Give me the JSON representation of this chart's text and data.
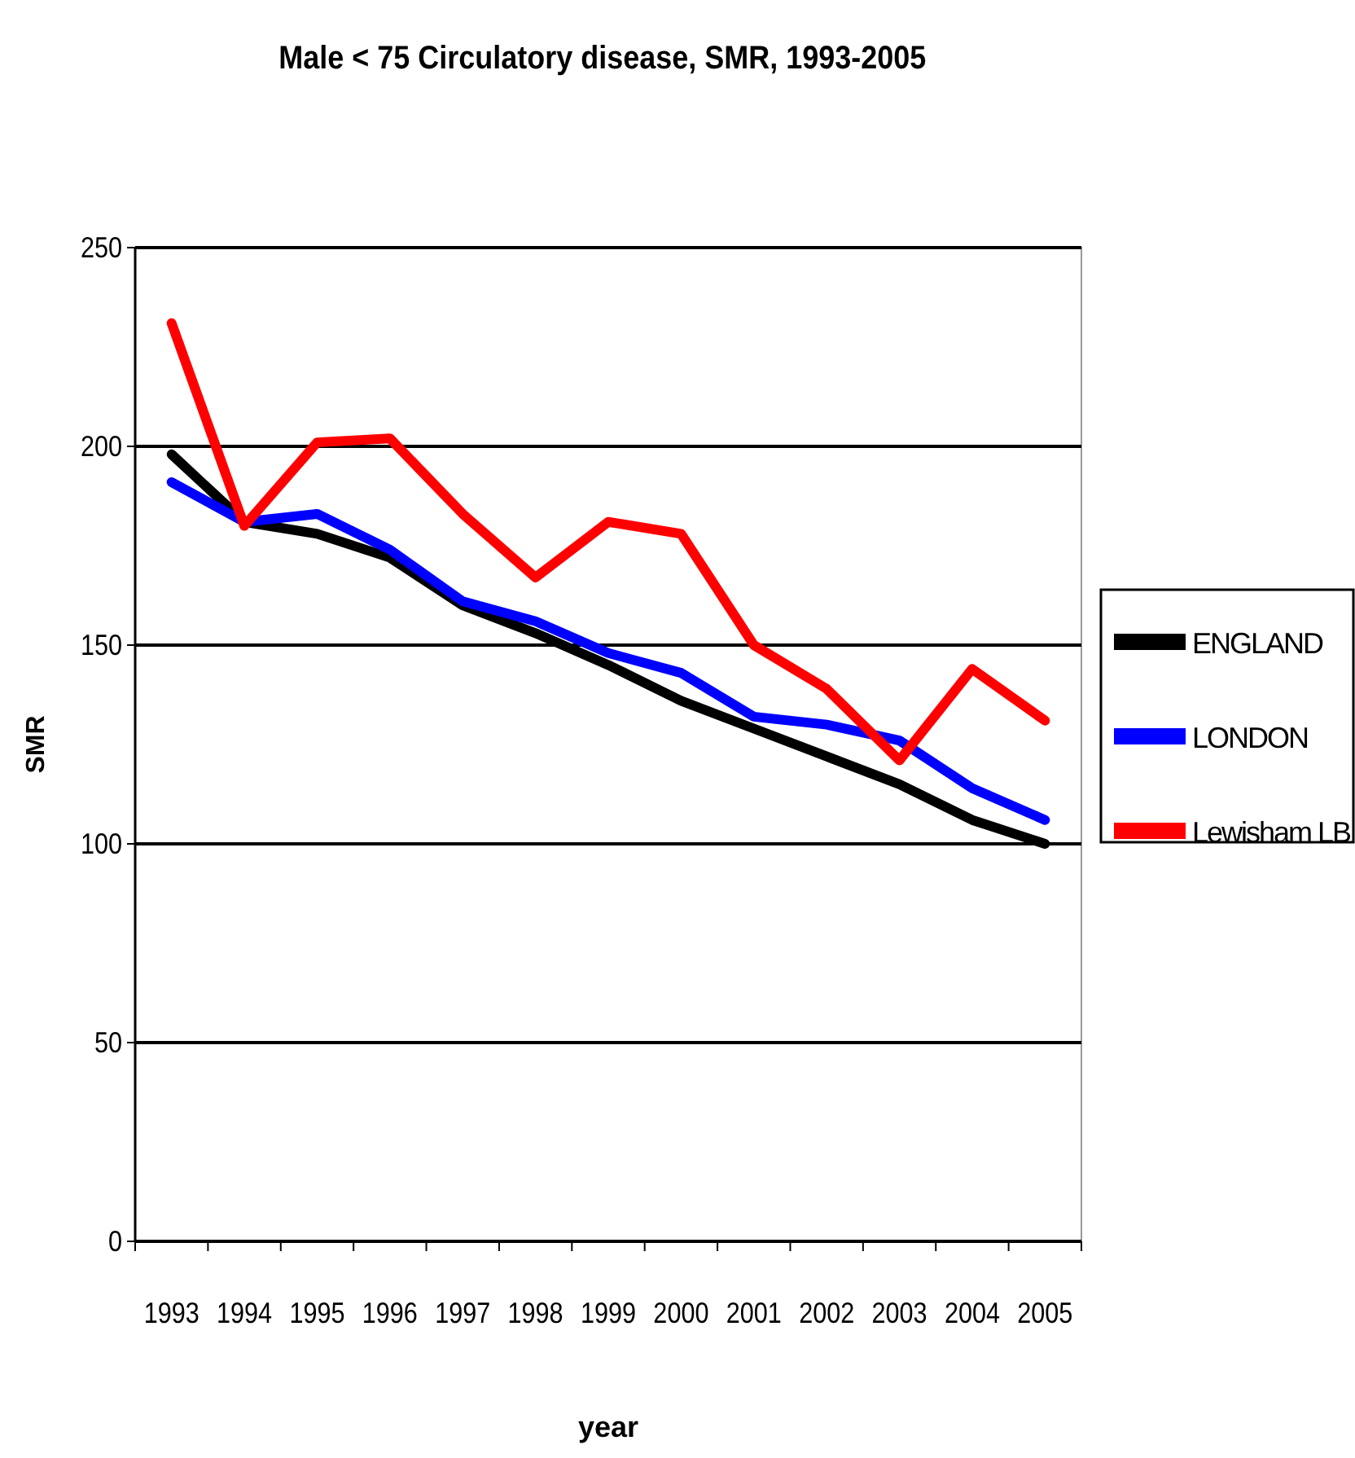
{
  "chart_data": {
    "type": "line",
    "title": "Male < 75 Circulatory disease, SMR, 1993-2005",
    "xlabel": "year",
    "ylabel": "SMR",
    "categories": [
      "1993",
      "1994",
      "1995",
      "1996",
      "1997",
      "1998",
      "1999",
      "2000",
      "2001",
      "2002",
      "2003",
      "2004",
      "2005"
    ],
    "series": [
      {
        "name": "ENGLAND",
        "color": "#000000",
        "values": [
          198,
          181,
          178,
          172,
          160,
          153,
          145,
          136,
          129,
          122,
          115,
          106,
          100
        ]
      },
      {
        "name": "LONDON",
        "color": "#0000ff",
        "values": [
          191,
          181,
          183,
          174,
          161,
          156,
          148,
          143,
          132,
          130,
          126,
          114,
          106
        ]
      },
      {
        "name": "Lewisham LB",
        "color": "#ff0000",
        "values": [
          231,
          180,
          201,
          202,
          183,
          167,
          181,
          178,
          150,
          139,
          121,
          144,
          131
        ]
      }
    ],
    "ylim": [
      0,
      250
    ],
    "yticks": [
      0,
      50,
      100,
      150,
      200,
      250
    ],
    "grid": "y",
    "legend": "right",
    "marker": "none",
    "line_style": "solid"
  }
}
